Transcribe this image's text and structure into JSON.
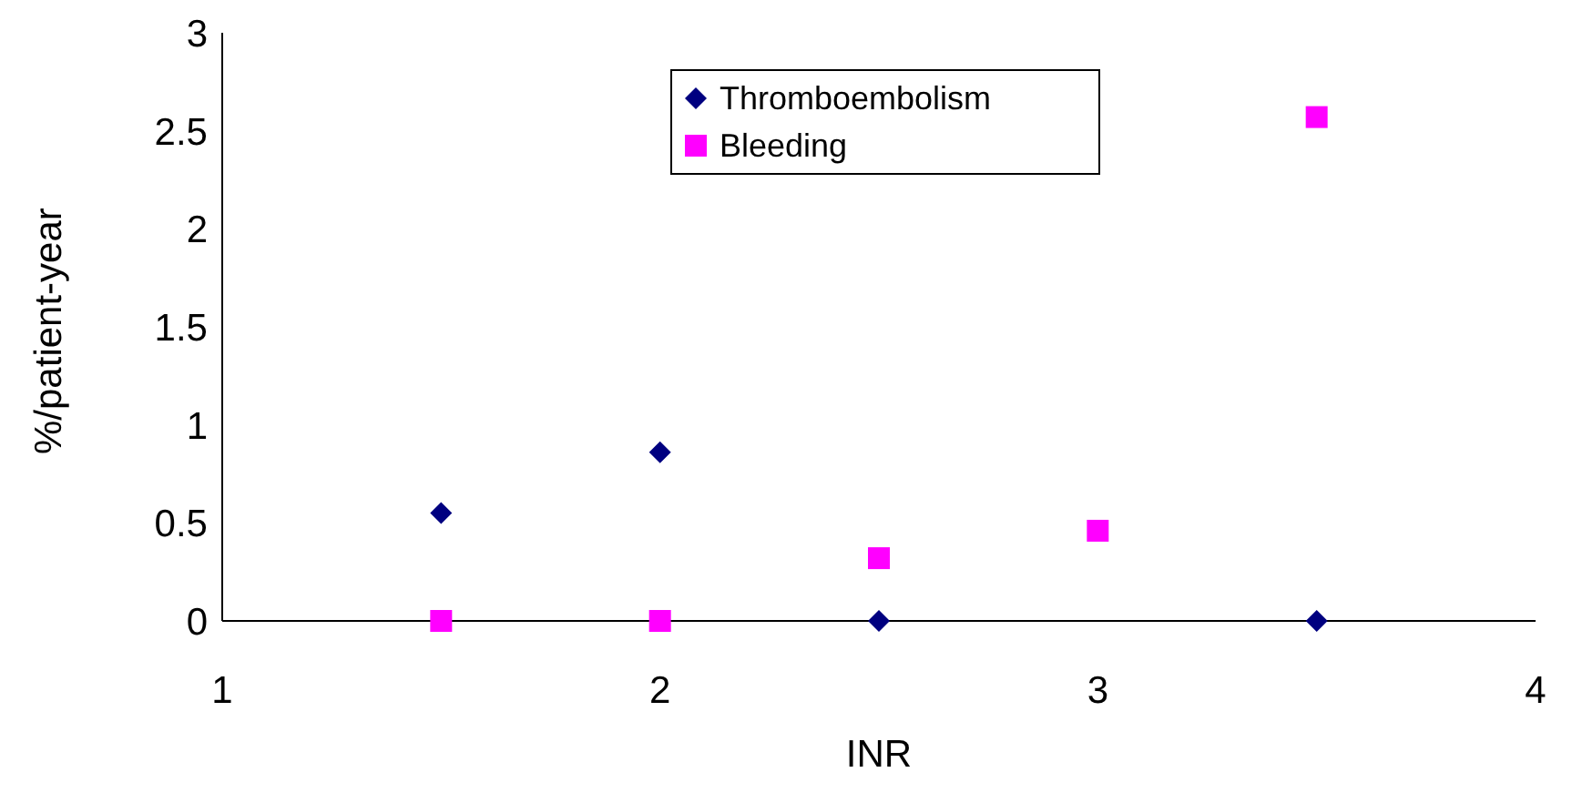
{
  "chart_data": {
    "type": "scatter",
    "xlabel": "INR",
    "ylabel": "%/patient-year",
    "x": [
      1.5,
      2,
      2.5,
      3,
      3.5
    ],
    "series": [
      {
        "name": "Thromboembolism",
        "color": "#000080",
        "marker": "diamond",
        "x": [
          1.5,
          2,
          2.5,
          3.5
        ],
        "values": [
          0.55,
          0.86,
          0,
          0
        ]
      },
      {
        "name": "Bleeding",
        "color": "#ff00ff",
        "marker": "square",
        "values": [
          0,
          0,
          0.32,
          0.46,
          2.57
        ]
      }
    ],
    "xlim": [
      1,
      4
    ],
    "xticks": [
      1,
      2,
      3,
      4
    ],
    "ylim": [
      0,
      3
    ],
    "yticks": [
      0,
      0.5,
      1,
      1.5,
      2,
      2.5,
      3
    ],
    "grid": false,
    "legend": "top"
  }
}
